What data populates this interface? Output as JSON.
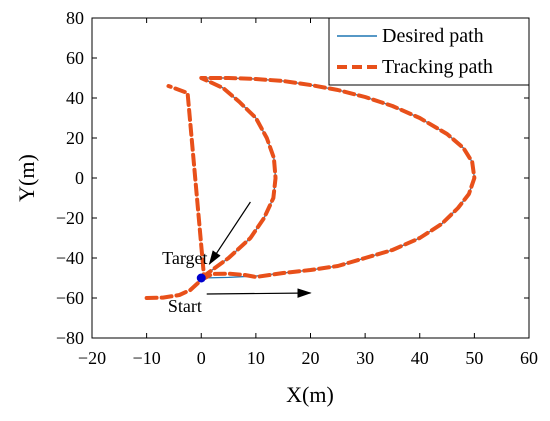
{
  "chart_data": {
    "type": "line",
    "xlabel": "X(m)",
    "ylabel": "Y(m)",
    "xlim": [
      -20,
      60
    ],
    "ylim": [
      -80,
      80
    ],
    "x_ticks": [
      -20,
      -10,
      0,
      10,
      20,
      30,
      40,
      50,
      60
    ],
    "y_ticks": [
      -80,
      -60,
      -40,
      -20,
      0,
      20,
      40,
      60,
      80
    ],
    "x_tick_labels": [
      "−20",
      "−10",
      "0",
      "10",
      "20",
      "30",
      "40",
      "50",
      "60"
    ],
    "y_tick_labels": [
      "−80",
      "−60",
      "−40",
      "−20",
      "0",
      "20",
      "40",
      "60",
      "80"
    ],
    "grid": false,
    "legend_position": "top-right",
    "series": [
      {
        "name": "Desired path",
        "color": "#1f77b4",
        "style": "solid",
        "points": [
          [
            0,
            -50
          ],
          [
            5,
            -49.7
          ],
          [
            10,
            -49
          ],
          [
            15,
            -47.5
          ],
          [
            20,
            -46
          ],
          [
            25,
            -44
          ],
          [
            30,
            -40
          ],
          [
            35,
            -36
          ],
          [
            40,
            -30
          ],
          [
            44,
            -23
          ],
          [
            47,
            -15
          ],
          [
            49,
            -8
          ],
          [
            50,
            0
          ],
          [
            49.6,
            8
          ],
          [
            48,
            15
          ],
          [
            45,
            22
          ],
          [
            40,
            30
          ],
          [
            35,
            36
          ],
          [
            30,
            40.5
          ],
          [
            25,
            44
          ],
          [
            20,
            46.5
          ],
          [
            15,
            48.5
          ],
          [
            10,
            49.5
          ],
          [
            5,
            50
          ],
          [
            0,
            50
          ],
          [
            4,
            45
          ],
          [
            7,
            38
          ],
          [
            10,
            30
          ],
          [
            12,
            20
          ],
          [
            13.3,
            10
          ],
          [
            13.6,
            0
          ],
          [
            13.2,
            -10
          ],
          [
            11.5,
            -20
          ],
          [
            9,
            -30
          ],
          [
            5,
            -40
          ],
          [
            2,
            -46
          ],
          [
            0,
            -50
          ]
        ]
      },
      {
        "name": "Tracking path",
        "color": "#e8501a",
        "style": "dashed",
        "points": [
          [
            -10,
            -60
          ],
          [
            -7,
            -59.8
          ],
          [
            -4,
            -58.5
          ],
          [
            -2,
            -56
          ],
          [
            0,
            -51
          ],
          [
            2,
            -48
          ],
          [
            5,
            -47.8
          ],
          [
            8,
            -48.5
          ],
          [
            10,
            -49.5
          ],
          [
            15,
            -47.5
          ],
          [
            20,
            -46
          ],
          [
            25,
            -44
          ],
          [
            30,
            -40
          ],
          [
            35,
            -36
          ],
          [
            40,
            -30
          ],
          [
            44,
            -23
          ],
          [
            47,
            -15
          ],
          [
            49,
            -8
          ],
          [
            50,
            0
          ],
          [
            49.6,
            8
          ],
          [
            48,
            15
          ],
          [
            45,
            22
          ],
          [
            40,
            30
          ],
          [
            35,
            36
          ],
          [
            30,
            40.5
          ],
          [
            25,
            44
          ],
          [
            20,
            46.5
          ],
          [
            15,
            48.5
          ],
          [
            10,
            49.5
          ],
          [
            5,
            50
          ],
          [
            0,
            50
          ],
          [
            4,
            45
          ],
          [
            7,
            38
          ],
          [
            10,
            30
          ],
          [
            12,
            20
          ],
          [
            13.3,
            10
          ],
          [
            13.6,
            0
          ],
          [
            13.2,
            -10
          ],
          [
            11.5,
            -20
          ],
          [
            9,
            -30
          ],
          [
            5,
            -40
          ],
          [
            2,
            -46
          ],
          [
            0.5,
            -49
          ],
          [
            -2.5,
            42.5
          ],
          [
            -4,
            44
          ],
          [
            -6,
            46
          ]
        ]
      }
    ],
    "annotations": [
      {
        "text": "Target",
        "anchor": [
          -3,
          -43
        ]
      },
      {
        "text": "Start",
        "anchor": [
          -3,
          -67
        ]
      }
    ],
    "arrows": [
      {
        "name": "target-arrow",
        "from": [
          9,
          -12
        ],
        "to": [
          1.5,
          -43
        ]
      },
      {
        "name": "start-arrow",
        "from": [
          1,
          -58
        ],
        "to": [
          20,
          -57.5
        ]
      }
    ],
    "markers": [
      {
        "name": "target-marker",
        "point": [
          0,
          -50
        ],
        "color": "#0000cc"
      }
    ]
  }
}
